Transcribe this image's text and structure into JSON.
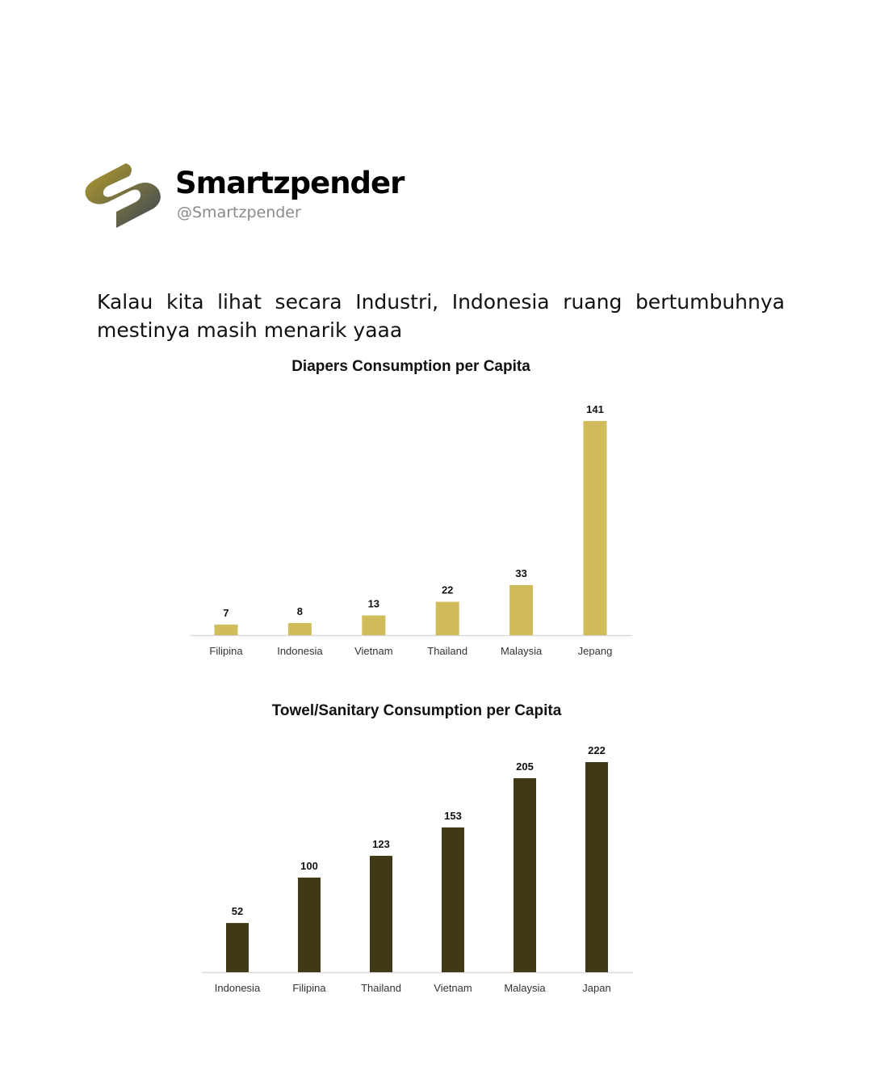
{
  "profile": {
    "name": "Smartzpender",
    "handle": "@Smartzpender"
  },
  "post": {
    "text": "Kalau kita lihat secara Industri, Indonesia ruang bertumbuhnya mestinya masih menarik yaaa"
  },
  "chart_data": [
    {
      "type": "bar",
      "title": "Diapers Consumption per Capita",
      "categories": [
        "Filipina",
        "Indonesia",
        "Vietnam",
        "Thailand",
        "Malaysia",
        "Jepang"
      ],
      "values": [
        7,
        8,
        13,
        22,
        33,
        141
      ],
      "color": "#d1bc5c",
      "grid": false
    },
    {
      "type": "bar",
      "title": "Towel/Sanitary Consumption per Capita",
      "categories": [
        "Indonesia",
        "Filipina",
        "Thailand",
        "Vietnam",
        "Malaysia",
        "Japan"
      ],
      "values": [
        52,
        100,
        123,
        153,
        205,
        222
      ],
      "color": "#413915",
      "grid": false
    }
  ]
}
